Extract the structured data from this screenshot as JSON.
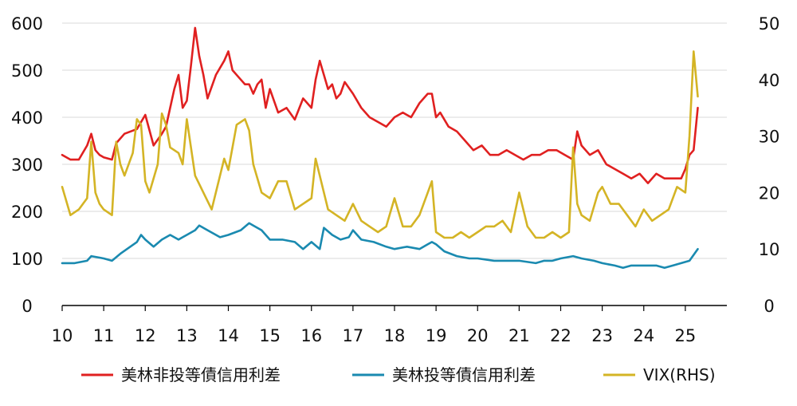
{
  "chart_data": {
    "type": "line",
    "title": "",
    "xlabel": "",
    "ylabel": "",
    "grid": true,
    "legend_position": "bottom",
    "xlim": [
      10,
      26
    ],
    "ylim": [
      0,
      600
    ],
    "y2lim": [
      0,
      50
    ],
    "x_ticks": [
      "10",
      "11",
      "12",
      "13",
      "14",
      "15",
      "16",
      "17",
      "18",
      "19",
      "20",
      "21",
      "22",
      "23",
      "24",
      "25"
    ],
    "y_ticks": [
      "0",
      "100",
      "200",
      "300",
      "400",
      "500",
      "600"
    ],
    "y2_ticks": [
      "0",
      "10",
      "20",
      "30",
      "40",
      "50"
    ],
    "series": [
      {
        "name": "美林非投等債信用利差",
        "axis": "left",
        "color": "#e02020",
        "x": [
          10.0,
          10.2,
          10.4,
          10.6,
          10.7,
          10.8,
          10.9,
          11.0,
          11.2,
          11.3,
          11.5,
          11.8,
          12.0,
          12.2,
          12.4,
          12.5,
          12.6,
          12.7,
          12.8,
          12.9,
          13.0,
          13.1,
          13.2,
          13.3,
          13.4,
          13.5,
          13.7,
          13.9,
          14.0,
          14.1,
          14.3,
          14.4,
          14.5,
          14.6,
          14.7,
          14.8,
          14.9,
          15.0,
          15.2,
          15.4,
          15.6,
          15.8,
          16.0,
          16.1,
          16.2,
          16.3,
          16.4,
          16.5,
          16.6,
          16.7,
          16.8,
          17.0,
          17.2,
          17.4,
          17.6,
          17.8,
          18.0,
          18.2,
          18.4,
          18.6,
          18.8,
          18.9,
          19.0,
          19.1,
          19.3,
          19.5,
          19.7,
          19.9,
          20.1,
          20.3,
          20.5,
          20.7,
          20.9,
          21.1,
          21.3,
          21.5,
          21.7,
          21.9,
          22.1,
          22.3,
          22.4,
          22.5,
          22.7,
          22.9,
          23.1,
          23.3,
          23.5,
          23.7,
          23.9,
          24.1,
          24.3,
          24.5,
          24.7,
          24.9,
          25.0,
          25.1,
          25.2,
          25.3
        ],
        "y": [
          320,
          310,
          310,
          340,
          365,
          330,
          320,
          315,
          310,
          345,
          365,
          375,
          405,
          340,
          365,
          380,
          420,
          460,
          490,
          420,
          435,
          510,
          590,
          530,
          490,
          440,
          490,
          520,
          540,
          500,
          480,
          470,
          470,
          450,
          470,
          480,
          420,
          460,
          410,
          420,
          395,
          440,
          420,
          480,
          520,
          490,
          460,
          470,
          440,
          450,
          475,
          450,
          420,
          400,
          390,
          380,
          400,
          410,
          400,
          430,
          450,
          450,
          400,
          410,
          380,
          370,
          350,
          330,
          340,
          320,
          320,
          330,
          320,
          310,
          320,
          320,
          330,
          330,
          320,
          310,
          370,
          340,
          320,
          330,
          300,
          290,
          280,
          270,
          280,
          260,
          280,
          270,
          270,
          270,
          290,
          320,
          330,
          420
        ]
      },
      {
        "name": "美林投等債信用利差",
        "axis": "left",
        "color": "#1a8ab0",
        "x": [
          10.0,
          10.3,
          10.6,
          10.7,
          11.0,
          11.2,
          11.4,
          11.8,
          11.9,
          12.0,
          12.2,
          12.4,
          12.6,
          12.8,
          12.9,
          13.0,
          13.2,
          13.3,
          13.5,
          13.8,
          14.0,
          14.3,
          14.5,
          14.6,
          14.8,
          15.0,
          15.3,
          15.6,
          15.8,
          16.0,
          16.2,
          16.3,
          16.5,
          16.7,
          16.9,
          17.0,
          17.2,
          17.5,
          17.8,
          18.0,
          18.3,
          18.6,
          18.8,
          18.9,
          19.0,
          19.2,
          19.5,
          19.8,
          20.0,
          20.4,
          20.8,
          21.0,
          21.4,
          21.6,
          21.8,
          22.0,
          22.3,
          22.5,
          22.8,
          23.0,
          23.3,
          23.5,
          23.7,
          24.0,
          24.3,
          24.5,
          24.7,
          24.9,
          25.1,
          25.3
        ],
        "y": [
          90,
          90,
          95,
          105,
          100,
          95,
          110,
          135,
          150,
          140,
          125,
          140,
          150,
          140,
          145,
          150,
          160,
          170,
          160,
          145,
          150,
          160,
          175,
          170,
          160,
          140,
          140,
          135,
          120,
          135,
          120,
          165,
          150,
          140,
          145,
          160,
          140,
          135,
          125,
          120,
          125,
          120,
          130,
          135,
          130,
          115,
          105,
          100,
          100,
          95,
          95,
          95,
          90,
          95,
          95,
          100,
          105,
          100,
          95,
          90,
          85,
          80,
          85,
          85,
          85,
          80,
          85,
          90,
          95,
          120
        ]
      },
      {
        "name": "VIX(RHS)",
        "axis": "right",
        "color": "#d4b425",
        "x": [
          10.0,
          10.2,
          10.4,
          10.6,
          10.7,
          10.8,
          10.9,
          11.0,
          11.2,
          11.3,
          11.4,
          11.5,
          11.7,
          11.8,
          11.9,
          12.0,
          12.1,
          12.3,
          12.4,
          12.5,
          12.6,
          12.8,
          12.9,
          13.0,
          13.2,
          13.4,
          13.6,
          13.9,
          14.0,
          14.2,
          14.4,
          14.5,
          14.6,
          14.8,
          15.0,
          15.2,
          15.4,
          15.6,
          15.8,
          16.0,
          16.1,
          16.2,
          16.4,
          16.6,
          16.8,
          17.0,
          17.2,
          17.4,
          17.6,
          17.8,
          18.0,
          18.2,
          18.4,
          18.6,
          18.8,
          18.9,
          19.0,
          19.2,
          19.4,
          19.6,
          19.8,
          20.0,
          20.2,
          20.4,
          20.6,
          20.8,
          21.0,
          21.2,
          21.4,
          21.6,
          21.8,
          22.0,
          22.2,
          22.3,
          22.4,
          22.5,
          22.7,
          22.9,
          23.0,
          23.2,
          23.4,
          23.6,
          23.8,
          24.0,
          24.2,
          24.4,
          24.6,
          24.8,
          25.0,
          25.1,
          25.2,
          25.3
        ],
        "y": [
          21,
          16,
          17,
          19,
          29,
          20,
          18,
          17,
          16,
          29,
          25,
          23,
          27,
          33,
          32,
          22,
          20,
          25,
          34,
          32,
          28,
          27,
          25,
          33,
          23,
          20,
          17,
          26,
          24,
          32,
          33,
          31,
          25,
          20,
          19,
          22,
          22,
          17,
          18,
          19,
          26,
          23,
          17,
          16,
          15,
          18,
          15,
          14,
          13,
          14,
          19,
          14,
          14,
          16,
          20,
          22,
          13,
          12,
          12,
          13,
          12,
          13,
          14,
          14,
          15,
          13,
          20,
          14,
          12,
          12,
          13,
          12,
          13,
          28,
          18,
          16,
          15,
          20,
          21,
          18,
          18,
          16,
          14,
          17,
          15,
          16,
          17,
          21,
          20,
          30,
          45,
          37
        ]
      }
    ]
  }
}
